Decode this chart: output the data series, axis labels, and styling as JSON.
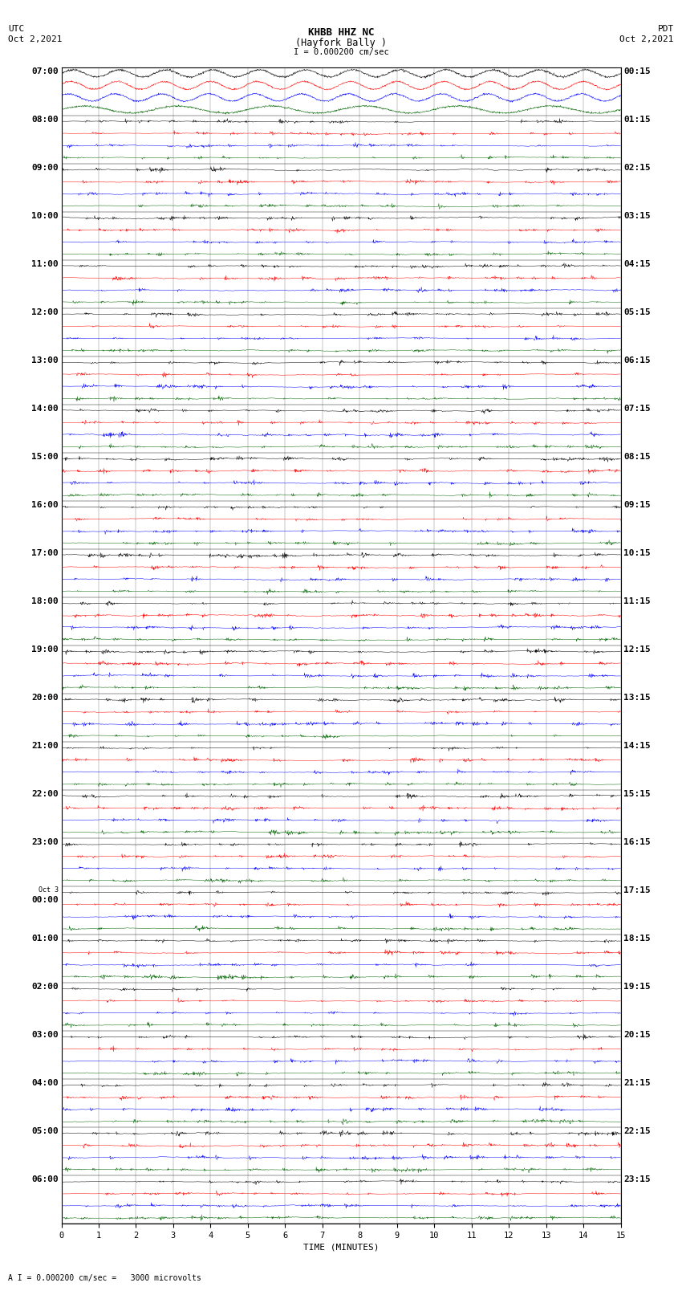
{
  "title_line1": "KHBB HHZ NC",
  "title_line2": "(Hayfork Bally )",
  "scale_bar": "I = 0.000200 cm/sec",
  "left_label_line1": "UTC",
  "left_label_line2": "Oct 2,2021",
  "right_label_line1": "PDT",
  "right_label_line2": "Oct 2,2021",
  "scale_note": "A I = 0.000200 cm/sec =   3000 microvolts",
  "left_times": [
    "07:00",
    "08:00",
    "09:00",
    "10:00",
    "11:00",
    "12:00",
    "13:00",
    "14:00",
    "15:00",
    "16:00",
    "17:00",
    "18:00",
    "19:00",
    "20:00",
    "21:00",
    "22:00",
    "23:00",
    "Oct 3\n00:00",
    "01:00",
    "02:00",
    "03:00",
    "04:00",
    "05:00",
    "06:00"
  ],
  "right_times": [
    "00:15",
    "01:15",
    "02:15",
    "03:15",
    "04:15",
    "05:15",
    "06:15",
    "07:15",
    "08:15",
    "09:15",
    "10:15",
    "11:15",
    "12:15",
    "13:15",
    "14:15",
    "15:15",
    "16:15",
    "17:15",
    "18:15",
    "19:15",
    "20:15",
    "21:15",
    "22:15",
    "23:15"
  ],
  "n_rows": 24,
  "traces_per_row": 4,
  "trace_colors": [
    "#000000",
    "#ff0000",
    "#0000ff",
    "#006400"
  ],
  "fig_width": 8.5,
  "fig_height": 16.13,
  "bg_color": "#ffffff",
  "x_ticks": [
    0,
    1,
    2,
    3,
    4,
    5,
    6,
    7,
    8,
    9,
    10,
    11,
    12,
    13,
    14,
    15
  ],
  "x_label": "TIME (MINUTES)",
  "grid_color": "#888888",
  "title_fontsize": 9,
  "label_fontsize": 8,
  "tick_fontsize": 7.5,
  "row_label_fontsize": 8.0,
  "n_points": 1800
}
